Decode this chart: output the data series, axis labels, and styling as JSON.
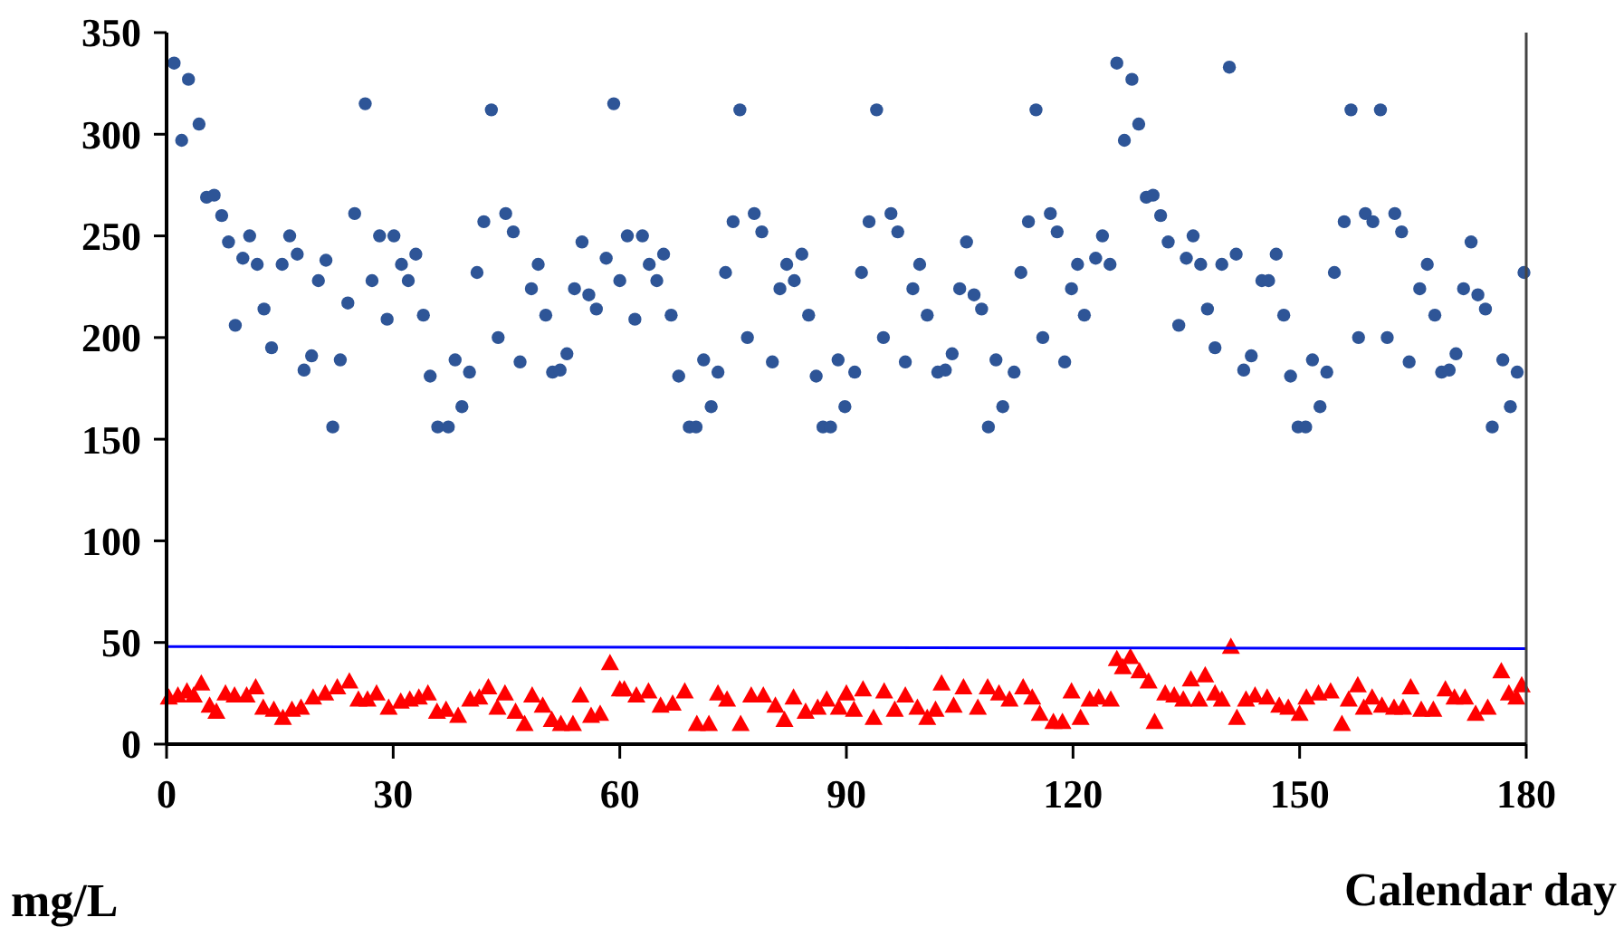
{
  "chart_data": {
    "type": "scatter",
    "xlabel": "Calendar day",
    "ylabel": "mg/L",
    "xlim": [
      0,
      180
    ],
    "ylim": [
      0,
      350
    ],
    "xticks": [
      0,
      30,
      60,
      90,
      120,
      150,
      180
    ],
    "yticks": [
      0,
      50,
      100,
      150,
      200,
      250,
      300,
      350
    ],
    "grid": false,
    "series": [
      {
        "marker": "circle",
        "color": "#2e5597",
        "x": [
          1.0,
          2.0,
          2.9,
          4.3,
          5.3,
          6.3,
          7.3,
          8.2,
          9.1,
          10.1,
          11.0,
          12.0,
          12.9,
          13.9,
          15.3,
          16.3,
          17.3,
          18.2,
          19.2,
          20.1,
          21.1,
          22.0,
          23.0,
          24.0,
          24.9,
          26.3,
          27.2,
          28.2,
          29.2,
          30.1,
          31.1,
          32.0,
          33.0,
          34.0,
          34.9,
          35.9,
          37.3,
          38.2,
          39.1,
          40.1,
          41.1,
          42.0,
          43.0,
          43.9,
          44.9,
          45.9,
          46.8,
          48.3,
          49.2,
          50.2,
          51.1,
          52.1,
          53.0,
          54.0,
          55.0,
          55.9,
          56.9,
          58.2,
          59.2,
          60.0,
          61.0,
          62.0,
          63.0,
          63.9,
          64.9,
          65.8,
          66.8,
          67.8,
          69.2,
          70.1,
          71.1,
          72.1,
          73.0,
          74.0,
          75.0,
          75.9,
          76.9,
          77.8,
          78.8,
          80.2,
          81.2,
          82.1,
          83.1,
          84.1,
          85.0,
          86.0,
          86.9,
          87.9,
          88.9,
          89.8,
          91.1,
          92.0,
          93.0,
          94.0,
          94.9,
          95.9,
          96.8,
          97.8,
          98.8,
          99.7,
          100.7,
          102.1,
          103.1,
          104.0,
          105.0,
          105.9,
          106.9,
          107.9,
          108.8,
          109.8,
          110.7,
          112.2,
          113.1,
          114.1,
          115.1,
          116.0,
          117.0,
          117.9,
          118.9,
          119.8,
          120.6,
          121.5,
          123.0,
          123.9,
          124.9,
          125.8,
          126.8,
          127.8,
          128.7,
          129.7,
          130.6,
          131.6,
          132.6,
          134.0,
          135.0,
          135.9,
          136.9,
          137.8,
          138.8,
          139.7,
          140.7,
          141.6,
          142.6,
          143.6,
          145.0,
          145.9,
          146.9,
          147.9,
          148.8,
          149.8,
          150.8,
          151.7,
          152.7,
          153.6,
          154.6,
          155.9,
          156.8,
          157.8,
          158.7,
          159.7,
          160.7,
          161.6,
          162.6,
          163.5,
          164.5,
          165.9,
          166.9,
          167.9,
          168.8,
          169.8,
          170.7,
          171.7,
          172.7,
          173.6,
          174.6,
          175.5,
          176.9,
          177.9,
          178.8,
          179.7
        ],
        "values": [
          335,
          297,
          327,
          305,
          269,
          270,
          260,
          247,
          206,
          239,
          250,
          236,
          214,
          195,
          236,
          250,
          241,
          184,
          191,
          228,
          238,
          156,
          189,
          217,
          261,
          315,
          228,
          250,
          209,
          250,
          236,
          228,
          241,
          211,
          181,
          156,
          156,
          189,
          166,
          183,
          232,
          257,
          312,
          200,
          261,
          252,
          188,
          224,
          236,
          211,
          183,
          184,
          192,
          224,
          247,
          221,
          214,
          239,
          315,
          228,
          250,
          209,
          250,
          236,
          228,
          241,
          211,
          181,
          156,
          156,
          189,
          166,
          183,
          232,
          257,
          312,
          200,
          261,
          252,
          188,
          224,
          236,
          228,
          241,
          211,
          181,
          156,
          156,
          189,
          166,
          183,
          232,
          257,
          312,
          200,
          261,
          252,
          188,
          224,
          236,
          211,
          183,
          184,
          192,
          224,
          247,
          221,
          214,
          156,
          189,
          166,
          183,
          232,
          257,
          312,
          200,
          261,
          252,
          188,
          224,
          236,
          211,
          239,
          250,
          236,
          335,
          297,
          327,
          305,
          269,
          270,
          260,
          247,
          206,
          239,
          250,
          236,
          214,
          195,
          236,
          333,
          241,
          184,
          191,
          228,
          228,
          241,
          211,
          181,
          156,
          156,
          189,
          166,
          183,
          232,
          257,
          312,
          200,
          261,
          257,
          312,
          200,
          261,
          252,
          188,
          224,
          236,
          211,
          183,
          184,
          192,
          224,
          247,
          221,
          214,
          156,
          189,
          166,
          183,
          232
        ]
      },
      {
        "marker": "triangle",
        "color": "#ff0000",
        "x": [
          0.3,
          1.5,
          2.7,
          3.6,
          4.6,
          5.7,
          6.6,
          7.8,
          9.0,
          10.6,
          11.8,
          12.8,
          14.2,
          15.4,
          16.6,
          17.8,
          19.4,
          21.0,
          22.6,
          24.2,
          25.4,
          26.6,
          27.8,
          29.4,
          31.0,
          32.2,
          33.4,
          34.6,
          35.8,
          37.0,
          38.6,
          40.2,
          41.4,
          42.6,
          43.8,
          44.8,
          46.2,
          47.4,
          48.4,
          49.8,
          51.0,
          52.2,
          53.8,
          54.8,
          56.2,
          57.4,
          58.7,
          60.0,
          60.6,
          62.2,
          63.8,
          65.4,
          67.0,
          68.6,
          70.2,
          71.8,
          73.0,
          74.2,
          76.0,
          77.4,
          79.0,
          80.6,
          81.8,
          83.0,
          84.6,
          86.2,
          87.4,
          89.0,
          90.0,
          91.0,
          92.2,
          93.6,
          95.0,
          96.4,
          97.8,
          99.4,
          100.7,
          101.8,
          102.6,
          104.2,
          105.5,
          107.4,
          108.7,
          110.2,
          111.6,
          113.4,
          114.6,
          115.6,
          117.4,
          118.6,
          119.8,
          121.0,
          122.2,
          123.4,
          125.0,
          125.8,
          126.6,
          127.6,
          128.8,
          130.0,
          130.8,
          132.2,
          133.4,
          134.6,
          135.6,
          136.7,
          137.5,
          138.8,
          139.7,
          140.9,
          141.7,
          142.9,
          144.1,
          145.7,
          147.3,
          148.5,
          150.0,
          150.9,
          152.5,
          154.1,
          155.6,
          156.5,
          157.7,
          158.5,
          159.6,
          160.9,
          162.5,
          163.7,
          164.7,
          166.1,
          167.7,
          169.3,
          170.5,
          171.9,
          173.3,
          174.9,
          176.7,
          177.7,
          178.7,
          179.4
        ],
        "values": [
          23,
          24,
          26,
          24,
          30,
          19,
          16,
          25,
          24,
          24,
          28,
          18,
          17,
          13,
          17,
          18,
          23,
          25,
          28,
          31,
          22,
          22,
          25,
          18,
          21,
          22,
          23,
          25,
          16,
          17,
          14,
          22,
          23,
          28,
          18,
          25,
          16,
          10,
          24,
          19,
          12,
          10,
          10,
          24,
          14,
          15,
          40,
          27,
          27,
          24,
          26,
          19,
          20,
          26,
          10,
          10,
          25,
          22,
          10,
          24,
          24,
          19,
          12,
          23,
          16,
          18,
          22,
          18,
          25,
          17,
          27,
          13,
          26,
          17,
          24,
          18,
          13,
          17,
          30,
          19,
          28,
          18,
          28,
          25,
          22,
          28,
          23,
          15,
          11,
          11,
          26,
          13,
          22,
          23,
          22,
          42,
          38,
          43,
          36,
          31,
          11,
          25,
          24,
          22,
          32,
          22,
          34,
          25,
          22,
          48,
          13,
          22,
          24,
          23,
          19,
          18,
          15,
          23,
          25,
          26,
          10,
          22,
          29,
          18,
          23,
          19,
          18,
          18,
          28,
          17,
          17,
          27,
          23,
          23,
          15,
          18,
          36,
          25,
          23,
          29
        ]
      },
      {
        "type": "line",
        "marker": "none",
        "line_style": "solid",
        "color": "#0000ff",
        "x": [
          0,
          180
        ],
        "values": [
          48,
          47
        ]
      }
    ]
  }
}
